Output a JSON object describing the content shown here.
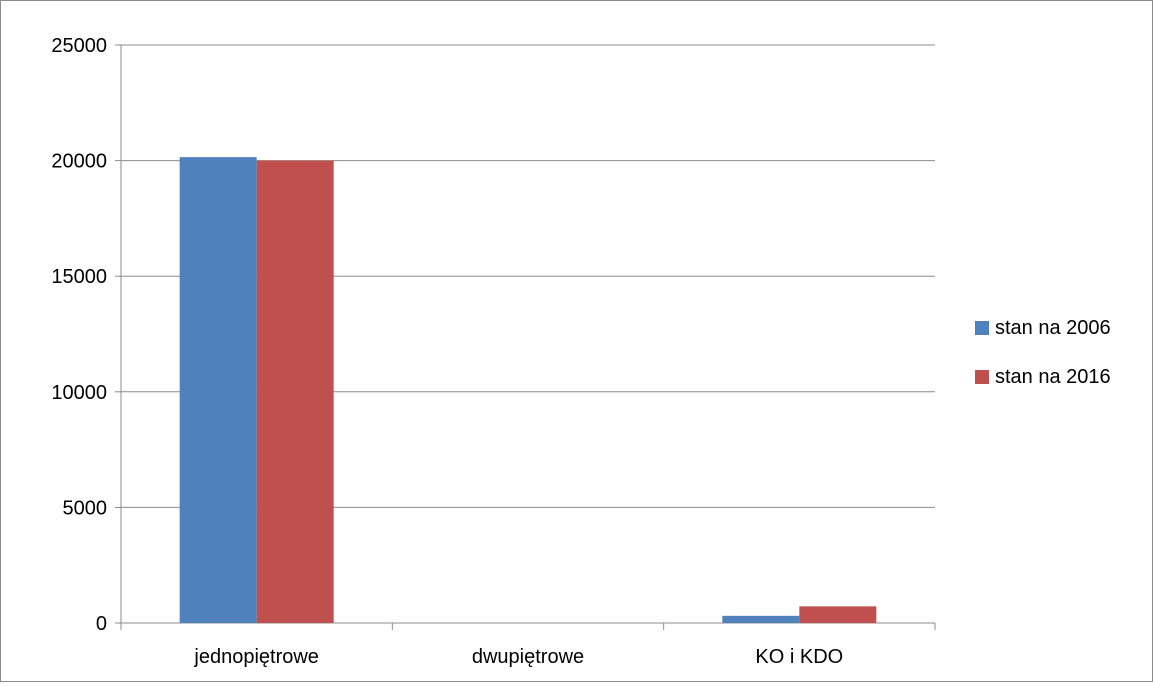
{
  "chart_data": {
    "type": "bar",
    "title": "",
    "xlabel": "",
    "ylabel": "",
    "categories": [
      "jednopiętrowe",
      "dwupiętrowe",
      "KO i KDO"
    ],
    "series": [
      {
        "name": "stan na 2006",
        "values": [
          20150,
          0,
          310
        ],
        "color": "#4f81bd"
      },
      {
        "name": "stan na 2016",
        "values": [
          20000,
          0,
          720
        ],
        "color": "#c0504d"
      }
    ],
    "ylim": [
      0,
      25000
    ],
    "yticks": [
      0,
      5000,
      10000,
      15000,
      20000,
      25000
    ],
    "ytick_labels": [
      "0",
      "5000",
      "10000",
      "15000",
      "20000",
      "25000"
    ],
    "grid": true,
    "legend_position": "right"
  }
}
